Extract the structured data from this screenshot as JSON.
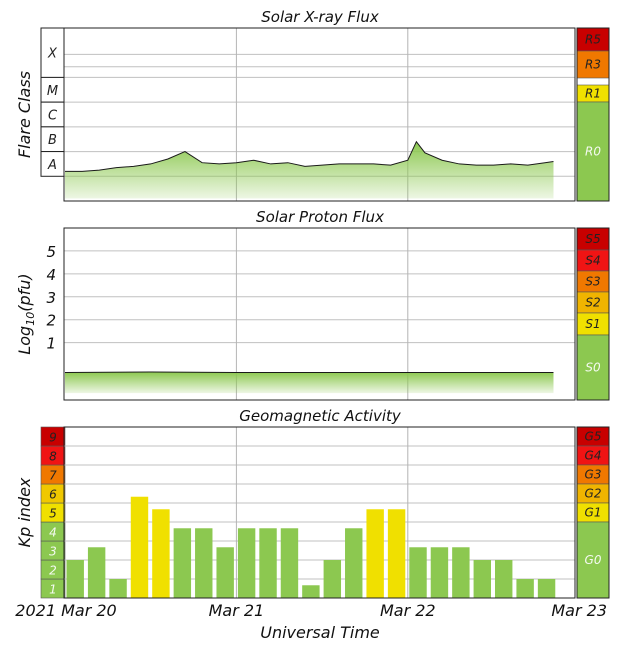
{
  "chart_data": [
    {
      "type": "area",
      "title": "Solar X-ray Flux",
      "ylabel": "Flare Class",
      "flare_classes": [
        "X",
        "M",
        "C",
        "B",
        "A"
      ],
      "x_ticks": [
        "Mar 20",
        "Mar 21",
        "Mar 22",
        "Mar 23"
      ],
      "x_range_days": [
        0,
        3
      ],
      "y_range_log10_flux": [
        -9,
        -2
      ],
      "radio_blackout_scale": [
        {
          "label": "R5",
          "color": "#c80000"
        },
        {
          "label": "R3",
          "color": "#f07800"
        },
        {
          "label": "R1",
          "color": "#f0e000"
        },
        {
          "label": "R0",
          "color": "#8cc850"
        }
      ],
      "series_color": "#8cc850",
      "series": [
        {
          "x_days": [
            0,
            0.1,
            0.2,
            0.3,
            0.4,
            0.5,
            0.6,
            0.7,
            0.8,
            0.9,
            1.0,
            1.1,
            1.2,
            1.3,
            1.4,
            1.5,
            1.6,
            1.7,
            1.8,
            1.9,
            2.0,
            2.05,
            2.1,
            2.2,
            2.3,
            2.4,
            2.5,
            2.6,
            2.7,
            2.8,
            2.85
          ],
          "log10_flux": [
            -7.8,
            -7.8,
            -7.75,
            -7.65,
            -7.6,
            -7.5,
            -7.3,
            -7.0,
            -7.45,
            -7.5,
            -7.45,
            -7.35,
            -7.5,
            -7.45,
            -7.6,
            -7.55,
            -7.5,
            -7.5,
            -7.5,
            -7.55,
            -7.35,
            -6.6,
            -7.05,
            -7.35,
            -7.5,
            -7.55,
            -7.55,
            -7.5,
            -7.55,
            -7.45,
            -7.4
          ]
        }
      ]
    },
    {
      "type": "area",
      "title": "Solar Proton Flux",
      "ylabel": "Log10(pfu)",
      "y_ticks": [
        "1",
        "2",
        "3",
        "4",
        "5"
      ],
      "y_range": [
        -1.5,
        6
      ],
      "radiation_storm_scale": [
        {
          "label": "S5",
          "color": "#c80000"
        },
        {
          "label": "S4",
          "color": "#f01414"
        },
        {
          "label": "S3",
          "color": "#f07800"
        },
        {
          "label": "S2",
          "color": "#f0b400"
        },
        {
          "label": "S1",
          "color": "#f0e000"
        },
        {
          "label": "S0",
          "color": "#8cc850"
        }
      ],
      "series_color": "#8cc850",
      "series": [
        {
          "x_days": [
            0,
            0.5,
            1.0,
            1.5,
            2.0,
            2.5,
            2.85
          ],
          "log10_pfu": [
            -0.3,
            -0.28,
            -0.3,
            -0.3,
            -0.3,
            -0.3,
            -0.3
          ]
        }
      ]
    },
    {
      "type": "bar",
      "title": "Geomagnetic Activity",
      "ylabel": "Kp index",
      "xlabel": "Universal Time",
      "x_start_label": "2021 Mar 20",
      "x_ticks": [
        "Mar 20",
        "Mar 21",
        "Mar 22",
        "Mar 23"
      ],
      "y_ticks": [
        "1",
        "2",
        "3",
        "4",
        "5",
        "6",
        "7",
        "8",
        "9"
      ],
      "ylim": [
        0,
        9
      ],
      "geomagnetic_storm_scale": [
        {
          "label": "G5",
          "color": "#c80000"
        },
        {
          "label": "G4",
          "color": "#f01414"
        },
        {
          "label": "G3",
          "color": "#f07800"
        },
        {
          "label": "G2",
          "color": "#f0b400"
        },
        {
          "label": "G1",
          "color": "#f0e000"
        },
        {
          "label": "G0",
          "color": "#8cc850"
        }
      ],
      "kp_level_colors": [
        "#8cc850",
        "#8cc850",
        "#8cc850",
        "#8cc850",
        "#f0e000",
        "#f0c800",
        "#f07800",
        "#f01414",
        "#c80000"
      ],
      "bar_interval_hours": 3,
      "values": [
        2.0,
        2.67,
        1.0,
        5.33,
        4.67,
        3.67,
        3.67,
        2.67,
        3.67,
        3.67,
        3.67,
        0.67,
        2.0,
        3.67,
        4.67,
        4.67,
        2.67,
        2.67,
        2.67,
        2.0,
        2.0,
        1.0,
        1.0
      ]
    }
  ]
}
